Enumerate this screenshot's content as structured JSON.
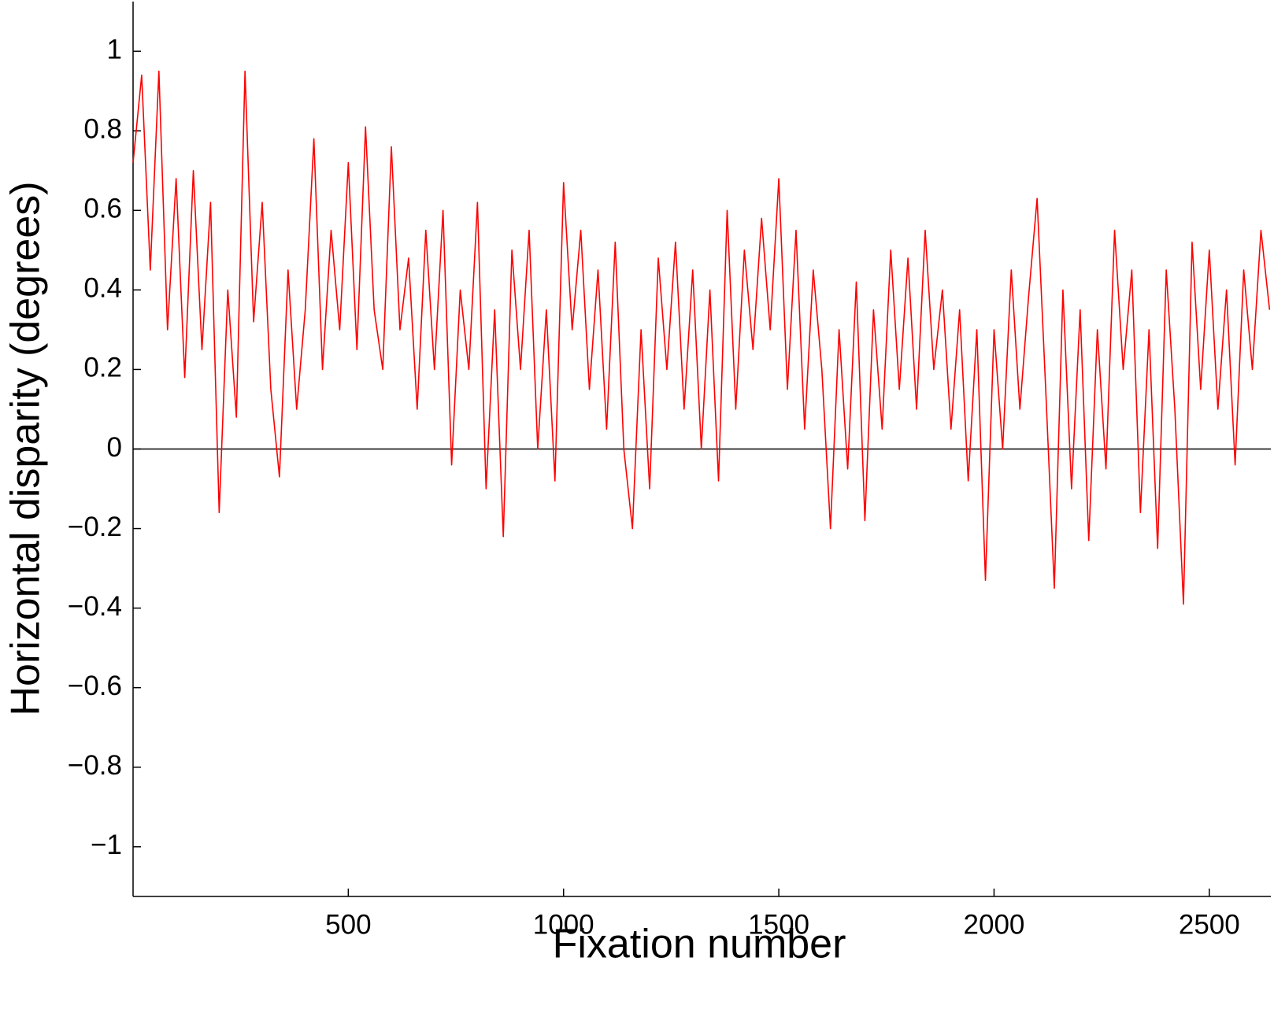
{
  "chart_data": {
    "type": "line",
    "x_label": "Fixation number",
    "y_label": "Horizontal disparity (degrees)",
    "xlim": [
      0,
      2643
    ],
    "ylim": [
      -1.125,
      1.125
    ],
    "xticks": [
      500,
      1000,
      1500,
      2000,
      2500
    ],
    "yticks": [
      {
        "value": -1,
        "label": "−1"
      },
      {
        "value": -0.8,
        "label": "−0.8"
      },
      {
        "value": -0.6,
        "label": "−0.6"
      },
      {
        "value": -0.4,
        "label": "−0.4"
      },
      {
        "value": -0.2,
        "label": "−0.2"
      },
      0,
      0.2,
      0.4,
      0.6,
      0.8,
      1
    ],
    "reference_line": 0,
    "reference_color": "#000000",
    "grid": false,
    "x": [
      0,
      20,
      40,
      60,
      80,
      100,
      120,
      140,
      160,
      180,
      200,
      220,
      240,
      260,
      280,
      300,
      320,
      340,
      360,
      380,
      400,
      420,
      440,
      460,
      480,
      500,
      520,
      540,
      560,
      580,
      600,
      620,
      640,
      660,
      680,
      700,
      720,
      740,
      760,
      780,
      800,
      820,
      840,
      860,
      880,
      900,
      920,
      940,
      960,
      980,
      1000,
      1020,
      1040,
      1060,
      1080,
      1100,
      1120,
      1140,
      1160,
      1180,
      1200,
      1220,
      1240,
      1260,
      1280,
      1300,
      1320,
      1340,
      1360,
      1380,
      1400,
      1420,
      1440,
      1460,
      1480,
      1500,
      1520,
      1540,
      1560,
      1580,
      1600,
      1620,
      1640,
      1660,
      1680,
      1700,
      1720,
      1740,
      1760,
      1780,
      1800,
      1820,
      1840,
      1860,
      1880,
      1900,
      1920,
      1940,
      1960,
      1980,
      2000,
      2020,
      2040,
      2060,
      2080,
      2100,
      2120,
      2140,
      2160,
      2180,
      2200,
      2220,
      2240,
      2260,
      2280,
      2300,
      2320,
      2340,
      2360,
      2380,
      2400,
      2420,
      2440,
      2460,
      2480,
      2500,
      2520,
      2540,
      2560,
      2580,
      2600,
      2620,
      2640
    ],
    "series": [
      {
        "color": "#ff0000",
        "values": [
          0.72,
          0.94,
          0.45,
          0.95,
          0.3,
          0.68,
          0.18,
          0.7,
          0.25,
          0.62,
          -0.16,
          0.4,
          0.08,
          0.95,
          0.32,
          0.62,
          0.15,
          -0.07,
          0.45,
          0.1,
          0.35,
          0.78,
          0.2,
          0.55,
          0.3,
          0.72,
          0.25,
          0.81,
          0.35,
          0.2,
          0.76,
          0.3,
          0.48,
          0.1,
          0.55,
          0.2,
          0.6,
          -0.04,
          0.4,
          0.2,
          0.62,
          -0.1,
          0.35,
          -0.22,
          0.5,
          0.2,
          0.55,
          0.0,
          0.35,
          -0.08,
          0.67,
          0.3,
          0.55,
          0.15,
          0.45,
          0.05,
          0.52,
          0.0,
          -0.2,
          0.3,
          -0.1,
          0.48,
          0.2,
          0.52,
          0.1,
          0.45,
          0.0,
          0.4,
          -0.08,
          0.6,
          0.1,
          0.5,
          0.25,
          0.58,
          0.3,
          0.68,
          0.15,
          0.55,
          0.05,
          0.45,
          0.2,
          -0.2,
          0.3,
          -0.05,
          0.42,
          -0.18,
          0.35,
          0.05,
          0.5,
          0.15,
          0.48,
          0.1,
          0.55,
          0.2,
          0.4,
          0.05,
          0.35,
          -0.08,
          0.3,
          -0.33,
          0.3,
          0.0,
          0.45,
          0.1,
          0.38,
          0.63,
          0.15,
          -0.35,
          0.4,
          -0.1,
          0.35,
          -0.23,
          0.3,
          -0.05,
          0.55,
          0.2,
          0.45,
          -0.16,
          0.3,
          -0.25,
          0.45,
          0.1,
          -0.39,
          0.52,
          0.15,
          0.5,
          0.1,
          0.4,
          -0.04,
          0.45,
          0.2,
          0.55,
          0.35
        ]
      }
    ]
  }
}
